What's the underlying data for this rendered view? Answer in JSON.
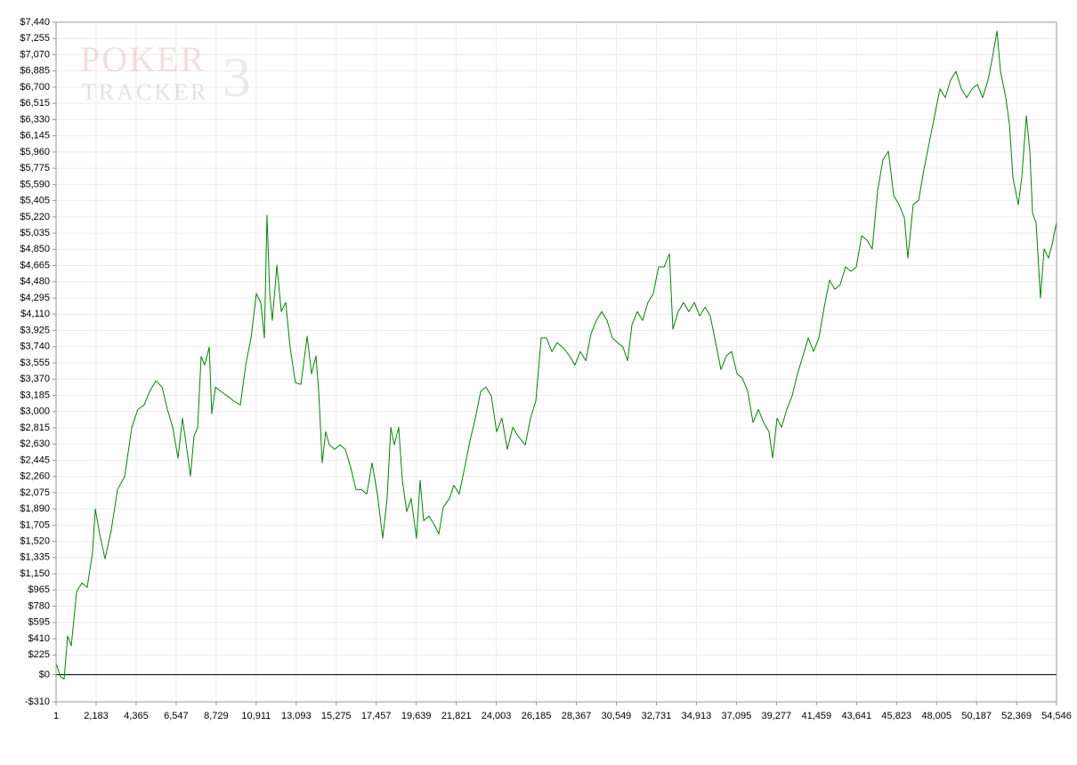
{
  "chart_data": {
    "type": "line",
    "watermark": [
      "POKER",
      "TRACKER",
      "3"
    ],
    "xlim": [
      1,
      54546
    ],
    "xticks": [
      1,
      {
        "value": 2183,
        "label": "2,183"
      },
      {
        "value": 4365,
        "label": "4,365"
      },
      {
        "value": 6547,
        "label": "6,547"
      },
      {
        "value": 8729,
        "label": "8,729"
      },
      {
        "value": 10911,
        "label": "10,911"
      },
      {
        "value": 13093,
        "label": "13,093"
      },
      {
        "value": 15275,
        "label": "15,275"
      },
      {
        "value": 17457,
        "label": "17,457"
      },
      {
        "value": 19639,
        "label": "19,639"
      },
      {
        "value": 21821,
        "label": "21,821"
      },
      {
        "value": 24003,
        "label": "24,003"
      },
      {
        "value": 26185,
        "label": "26,185"
      },
      {
        "value": 28367,
        "label": "28,367"
      },
      {
        "value": 30549,
        "label": "30,549"
      },
      {
        "value": 32731,
        "label": "32,731"
      },
      {
        "value": 34913,
        "label": "34,913"
      },
      {
        "value": 37095,
        "label": "37,095"
      },
      {
        "value": 39277,
        "label": "39,277"
      },
      {
        "value": 41459,
        "label": "41,459"
      },
      {
        "value": 43641,
        "label": "43,641"
      },
      {
        "value": 45823,
        "label": "45,823"
      },
      {
        "value": 48005,
        "label": "48,005"
      },
      {
        "value": 50187,
        "label": "50,187"
      },
      {
        "value": 52369,
        "label": "52,369"
      },
      {
        "value": 54546,
        "label": "54,546"
      }
    ],
    "ylim": [
      -310,
      7440
    ],
    "yticks": [
      {
        "value": -310,
        "label": "-$310"
      },
      {
        "value": 0,
        "label": "$0"
      },
      {
        "value": 225,
        "label": "$225"
      },
      {
        "value": 410,
        "label": "$410"
      },
      {
        "value": 595,
        "label": "$595"
      },
      {
        "value": 780,
        "label": "$780"
      },
      {
        "value": 965,
        "label": "$965"
      },
      {
        "value": 1150,
        "label": "$1,150"
      },
      {
        "value": 1335,
        "label": "$1,335"
      },
      {
        "value": 1520,
        "label": "$1,520"
      },
      {
        "value": 1705,
        "label": "$1,705"
      },
      {
        "value": 1890,
        "label": "$1,890"
      },
      {
        "value": 2075,
        "label": "$2,075"
      },
      {
        "value": 2260,
        "label": "$2,260"
      },
      {
        "value": 2445,
        "label": "$2,445"
      },
      {
        "value": 2630,
        "label": "$2,630"
      },
      {
        "value": 2815,
        "label": "$2,815"
      },
      {
        "value": 3000,
        "label": "$3,000"
      },
      {
        "value": 3185,
        "label": "$3,185"
      },
      {
        "value": 3370,
        "label": "$3,370"
      },
      {
        "value": 3555,
        "label": "$3,555"
      },
      {
        "value": 3740,
        "label": "$3,740"
      },
      {
        "value": 3925,
        "label": "$3,925"
      },
      {
        "value": 4110,
        "label": "$4,110"
      },
      {
        "value": 4295,
        "label": "$4,295"
      },
      {
        "value": 4480,
        "label": "$4,480"
      },
      {
        "value": 4665,
        "label": "$4,665"
      },
      {
        "value": 4850,
        "label": "$4,850"
      },
      {
        "value": 5035,
        "label": "$5,035"
      },
      {
        "value": 5220,
        "label": "$5,220"
      },
      {
        "value": 5405,
        "label": "$5,405"
      },
      {
        "value": 5590,
        "label": "$5,590"
      },
      {
        "value": 5775,
        "label": "$5,775"
      },
      {
        "value": 5960,
        "label": "$5,960"
      },
      {
        "value": 6145,
        "label": "$6,145"
      },
      {
        "value": 6330,
        "label": "$6,330"
      },
      {
        "value": 6515,
        "label": "$6,515"
      },
      {
        "value": 6700,
        "label": "$6,700"
      },
      {
        "value": 6885,
        "label": "$6,885"
      },
      {
        "value": 7070,
        "label": "$7,070"
      },
      {
        "value": 7255,
        "label": "$7,255"
      },
      {
        "value": 7440,
        "label": "$7,440"
      }
    ],
    "grid": true,
    "x": [
      1,
      240,
      440,
      630,
      830,
      1120,
      1410,
      1700,
      1990,
      2140,
      2380,
      2670,
      3010,
      3350,
      3740,
      4130,
      4460,
      4800,
      5100,
      5440,
      5780,
      6070,
      6360,
      6650,
      6890,
      7130,
      7330,
      7520,
      7720,
      7910,
      8100,
      8350,
      8490,
      8690,
      8980,
      9320,
      9660,
      10050,
      10340,
      10630,
      10920,
      11160,
      11360,
      11500,
      11650,
      11790,
      12040,
      12280,
      12520,
      12760,
      13050,
      13350,
      13690,
      13930,
      14170,
      14320,
      14510,
      14700,
      14900,
      15190,
      15480,
      15770,
      16060,
      16350,
      16650,
      16940,
      17230,
      17520,
      17810,
      18050,
      18250,
      18440,
      18680,
      18880,
      19120,
      19360,
      19650,
      19850,
      20040,
      20330,
      20630,
      20870,
      21110,
      21450,
      21690,
      21980,
      22280,
      22570,
      22860,
      23150,
      23440,
      23730,
      24020,
      24310,
      24600,
      24900,
      25190,
      25580,
      25870,
      26160,
      26450,
      26740,
      27030,
      27320,
      27610,
      28000,
      28290,
      28580,
      28880,
      29170,
      29460,
      29750,
      30040,
      30330,
      30620,
      30910,
      31160,
      31400,
      31690,
      31980,
      32270,
      32560,
      32850,
      33150,
      33440,
      33630,
      33920,
      34210,
      34500,
      34800,
      35090,
      35380,
      35670,
      35960,
      36250,
      36540,
      36830,
      37130,
      37420,
      37710,
      38000,
      38290,
      38580,
      38870,
      39070,
      39310,
      39550,
      39840,
      40130,
      40420,
      40720,
      41010,
      41300,
      41590,
      41880,
      42170,
      42460,
      42750,
      43040,
      43340,
      43630,
      43920,
      44210,
      44500,
      44790,
      45080,
      45380,
      45670,
      45960,
      46250,
      46440,
      46730,
      47030,
      47320,
      47610,
      47900,
      48190,
      48480,
      48770,
      49060,
      49360,
      49650,
      49940,
      50230,
      50520,
      50810,
      51050,
      51300,
      51490,
      51780,
      51980,
      52170,
      52460,
      52650,
      52900,
      53090,
      53240,
      53430,
      53670,
      53870,
      54110,
      54300,
      54546
    ],
    "series": [
      {
        "color": "#008800",
        "values": [
          130,
          -20,
          -50,
          440,
          330,
          945,
          1045,
          995,
          1400,
          1890,
          1600,
          1320,
          1650,
          2110,
          2260,
          2820,
          3025,
          3075,
          3230,
          3350,
          3280,
          3025,
          2820,
          2470,
          2925,
          2570,
          2265,
          2720,
          2820,
          3630,
          3530,
          3735,
          2975,
          3280,
          3230,
          3180,
          3125,
          3075,
          3530,
          3840,
          4345,
          4245,
          3840,
          5240,
          4345,
          4040,
          4670,
          4140,
          4245,
          3735,
          3330,
          3310,
          3860,
          3430,
          3635,
          3230,
          2415,
          2770,
          2620,
          2570,
          2620,
          2570,
          2365,
          2110,
          2110,
          2060,
          2415,
          2060,
          1555,
          2010,
          2820,
          2620,
          2820,
          2215,
          1860,
          2010,
          1555,
          2215,
          1755,
          1810,
          1705,
          1605,
          1910,
          2010,
          2160,
          2060,
          2365,
          2670,
          2925,
          3230,
          3280,
          3180,
          2770,
          2925,
          2570,
          2820,
          2720,
          2620,
          2925,
          3125,
          3840,
          3840,
          3685,
          3785,
          3735,
          3635,
          3530,
          3685,
          3580,
          3890,
          4040,
          4140,
          4040,
          3840,
          3785,
          3735,
          3580,
          3990,
          4140,
          4040,
          4245,
          4345,
          4650,
          4650,
          4800,
          3940,
          4140,
          4245,
          4140,
          4245,
          4090,
          4190,
          4090,
          3785,
          3480,
          3635,
          3685,
          3430,
          3380,
          3230,
          2875,
          3025,
          2875,
          2770,
          2470,
          2925,
          2820,
          3025,
          3180,
          3430,
          3635,
          3840,
          3685,
          3840,
          4190,
          4500,
          4395,
          4445,
          4650,
          4600,
          4650,
          5005,
          4955,
          4855,
          5515,
          5870,
          5970,
          5460,
          5360,
          5210,
          4750,
          5360,
          5410,
          5765,
          6070,
          6375,
          6680,
          6580,
          6780,
          6880,
          6680,
          6580,
          6680,
          6730,
          6580,
          6780,
          7035,
          7340,
          6880,
          6580,
          6275,
          5665,
          5360,
          5665,
          6375,
          5970,
          5260,
          5155,
          4295,
          4855,
          4750,
          4900,
          5160
        ]
      }
    ]
  }
}
